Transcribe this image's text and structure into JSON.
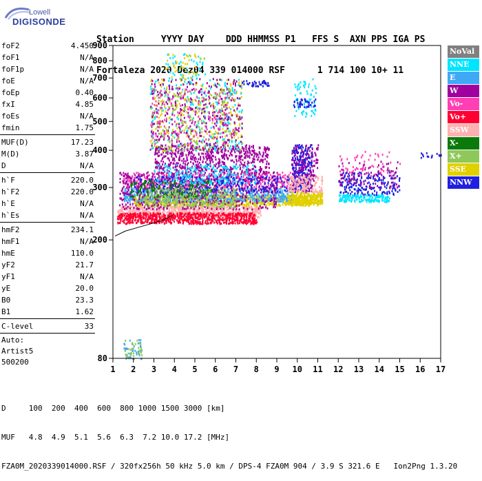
{
  "logo": {
    "top": "Lowell",
    "brand": "DIGISONDE"
  },
  "header": {
    "line1": "Station     YYYY DAY    DDD HHMMSS P1   FFS S  AXN PPS IGA PS",
    "line2": "Fortaleza 2020 Dez04 339 014000 RSF      1 714 100 10+ 11"
  },
  "params": [
    {
      "k": "foF2",
      "v": "4.450"
    },
    {
      "k": "foF1",
      "v": "N/A"
    },
    {
      "k": "foF1p",
      "v": "N/A"
    },
    {
      "k": "foE",
      "v": "N/A"
    },
    {
      "k": "foEp",
      "v": "0.40"
    },
    {
      "k": "fxI",
      "v": "4.85"
    },
    {
      "k": "foEs",
      "v": "N/A"
    },
    {
      "k": "fmin",
      "v": "1.75"
    },
    {
      "sep": true
    },
    {
      "k": "MUF(D)",
      "v": "17.23"
    },
    {
      "k": "M(D)",
      "v": "3.87"
    },
    {
      "k": "D",
      "v": "N/A"
    },
    {
      "sep": true
    },
    {
      "k": "h`F",
      "v": "220.0"
    },
    {
      "k": "h`F2",
      "v": "220.0"
    },
    {
      "k": "h`E",
      "v": "N/A"
    },
    {
      "k": "h`Es",
      "v": "N/A"
    },
    {
      "sep": true
    },
    {
      "k": "hmF2",
      "v": "234.1"
    },
    {
      "k": "hmF1",
      "v": "N/A"
    },
    {
      "k": "hmE",
      "v": "110.0"
    },
    {
      "k": "yF2",
      "v": "21.7"
    },
    {
      "k": "yF1",
      "v": "N/A"
    },
    {
      "k": "yE",
      "v": "20.0"
    },
    {
      "k": "B0",
      "v": "23.3"
    },
    {
      "k": "B1",
      "v": "1.62"
    },
    {
      "sep": true
    },
    {
      "k": "C-level",
      "v": "33"
    },
    {
      "sep": true
    },
    {
      "line": "Auto:"
    },
    {
      "line": "Artist5"
    },
    {
      "line": "500200"
    }
  ],
  "legend": [
    {
      "label": "NoVal",
      "color": "#808080"
    },
    {
      "label": "NNE",
      "color": "#00e5ff"
    },
    {
      "label": "E",
      "color": "#3fa9f5"
    },
    {
      "label": "W",
      "color": "#a000a0"
    },
    {
      "label": "Vo-",
      "color": "#ff3fb4"
    },
    {
      "label": "Vo+",
      "color": "#ff0033"
    },
    {
      "label": "SSW",
      "color": "#ffb0b0"
    },
    {
      "label": "X-",
      "color": "#0a7a0a"
    },
    {
      "label": "X+",
      "color": "#8fc85a"
    },
    {
      "label": "SSE",
      "color": "#e0d000"
    },
    {
      "label": "NNW",
      "color": "#2020e0"
    }
  ],
  "footer": {
    "line1": "D     100  200  400  600  800 1000 1500 3000 [km]",
    "line2": "MUF   4.8  4.9  5.1  5.6  6.3  7.2 10.0 17.2 [MHz]",
    "line3": "FZA0M_2020339014000.RSF / 320fx256h 50 kHz 5.0 km / DPS-4 FZA0M 904 / 3.9 S 321.6 E   Ion2Png 1.3.20"
  },
  "chart_data": {
    "type": "scatter",
    "xlim": [
      1,
      17
    ],
    "ylim": [
      80,
      900
    ],
    "xticks": [
      1,
      2,
      3,
      4,
      5,
      6,
      7,
      8,
      9,
      10,
      11,
      12,
      13,
      14,
      15,
      16,
      17
    ],
    "yticks": [
      80,
      200,
      300,
      400,
      500,
      600,
      700,
      800,
      900
    ],
    "y_scale": "log",
    "grid": false,
    "legend_position": "right",
    "trace": {
      "color": "#000000",
      "points": [
        [
          1.1,
          206
        ],
        [
          1.6,
          214
        ],
        [
          2.2,
          220
        ],
        [
          2.8,
          226
        ],
        [
          3.5,
          234
        ],
        [
          3.9,
          242
        ]
      ]
    },
    "clusters": [
      {
        "name": "SSW",
        "x": [
          1.2,
          8.2
        ],
        "y": [
          240,
          262
        ],
        "n": 900
      },
      {
        "name": "Vo+",
        "x": [
          1.2,
          8.0
        ],
        "y": [
          228,
          248
        ],
        "n": 700
      },
      {
        "name": "SSE",
        "x": [
          2.0,
          11.0
        ],
        "y": [
          262,
          285
        ],
        "n": 900
      },
      {
        "name": "E",
        "x": [
          1.5,
          9.8
        ],
        "y": [
          270,
          300
        ],
        "n": 700
      },
      {
        "name": "Vo-",
        "x": [
          1.5,
          10.0
        ],
        "y": [
          300,
          340
        ],
        "n": 500
      },
      {
        "name": "W",
        "x": [
          1.3,
          9.0
        ],
        "y": [
          255,
          340
        ],
        "n": 700
      },
      {
        "name": "W",
        "x": [
          3.0,
          8.6
        ],
        "y": [
          340,
          420
        ],
        "n": 600
      },
      {
        "name": "NNW",
        "x": [
          2.0,
          9.8
        ],
        "y": [
          290,
          330
        ],
        "n": 300
      },
      {
        "name": "X+",
        "x": [
          2.5,
          7.0
        ],
        "y": [
          260,
          300
        ],
        "n": 300
      },
      {
        "name": "X-",
        "x": [
          1.8,
          6.0
        ],
        "y": [
          280,
          320
        ],
        "n": 150
      },
      {
        "name": "NNE",
        "x": [
          3.0,
          8.0
        ],
        "y": [
          310,
          360
        ],
        "n": 200
      },
      {
        "name": "SSE",
        "x": [
          2.8,
          7.3
        ],
        "y": [
          400,
          700
        ],
        "n": 300
      },
      {
        "name": "NNE",
        "x": [
          2.8,
          7.3
        ],
        "y": [
          400,
          700
        ],
        "n": 250
      },
      {
        "name": "W",
        "x": [
          2.8,
          7.3
        ],
        "y": [
          400,
          700
        ],
        "n": 350
      },
      {
        "name": "X+",
        "x": [
          2.8,
          7.0
        ],
        "y": [
          400,
          650
        ],
        "n": 150
      },
      {
        "name": "Vo-",
        "x": [
          2.8,
          7.0
        ],
        "y": [
          420,
          650
        ],
        "n": 150
      },
      {
        "name": "NNE",
        "x": [
          3.5,
          5.5
        ],
        "y": [
          700,
          850
        ],
        "n": 50
      },
      {
        "name": "SSE",
        "x": [
          3.5,
          5.5
        ],
        "y": [
          700,
          850
        ],
        "n": 40
      },
      {
        "name": "NNW",
        "x": [
          9.7,
          10.7
        ],
        "y": [
          290,
          420
        ],
        "n": 280
      },
      {
        "name": "W",
        "x": [
          9.7,
          11.0
        ],
        "y": [
          290,
          420
        ],
        "n": 150
      },
      {
        "name": "SSE",
        "x": [
          9.5,
          11.2
        ],
        "y": [
          265,
          290
        ],
        "n": 250
      },
      {
        "name": "SSW",
        "x": [
          9.5,
          11.2
        ],
        "y": [
          290,
          330
        ],
        "n": 150
      },
      {
        "name": "NNE",
        "x": [
          9.8,
          10.9
        ],
        "y": [
          520,
          700
        ],
        "n": 70
      },
      {
        "name": "NNW",
        "x": [
          9.8,
          10.9
        ],
        "y": [
          560,
          600
        ],
        "n": 40
      },
      {
        "name": "NNE",
        "x": [
          12.0,
          14.5
        ],
        "y": [
          270,
          285
        ],
        "n": 160
      },
      {
        "name": "NNW",
        "x": [
          12.0,
          15.0
        ],
        "y": [
          285,
          340
        ],
        "n": 200
      },
      {
        "name": "W",
        "x": [
          12.0,
          15.0
        ],
        "y": [
          300,
          370
        ],
        "n": 90
      },
      {
        "name": "Vo-",
        "x": [
          12.0,
          15.0
        ],
        "y": [
          330,
          400
        ],
        "n": 60
      },
      {
        "name": "NNW",
        "x": [
          7.2,
          8.6
        ],
        "y": [
          660,
          690
        ],
        "n": 40
      },
      {
        "name": "E",
        "x": [
          1.5,
          2.4
        ],
        "y": [
          80,
          93
        ],
        "n": 40
      },
      {
        "name": "X+",
        "x": [
          1.5,
          2.4
        ],
        "y": [
          80,
          93
        ],
        "n": 30
      },
      {
        "name": "NNW",
        "x": [
          16.0,
          17.0
        ],
        "y": [
          380,
          400
        ],
        "n": 15
      }
    ]
  }
}
